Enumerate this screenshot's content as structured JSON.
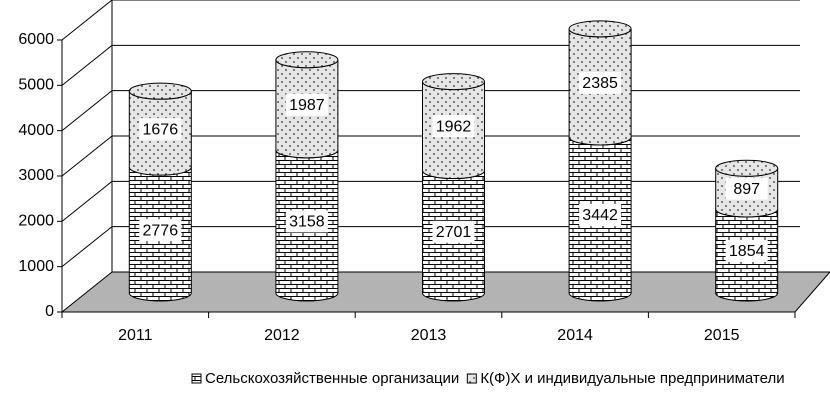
{
  "chart_data": {
    "type": "bar3d_stacked",
    "categories": [
      "2011",
      "2012",
      "2013",
      "2014",
      "2015"
    ],
    "series": [
      {
        "name": "Сельскохозяйственные организации",
        "color": "#ffffff",
        "values": [
          2776,
          3158,
          2701,
          3442,
          1854
        ]
      },
      {
        "name": "К(Ф)Х и индивидуальные предприниматели",
        "color": "#d9d9d9",
        "values": [
          1676,
          1987,
          1962,
          2385,
          897
        ]
      }
    ],
    "ylim": [
      0,
      6000
    ],
    "yticks": [
      0,
      1000,
      2000,
      3000,
      4000,
      5000,
      6000
    ],
    "grid": true
  }
}
